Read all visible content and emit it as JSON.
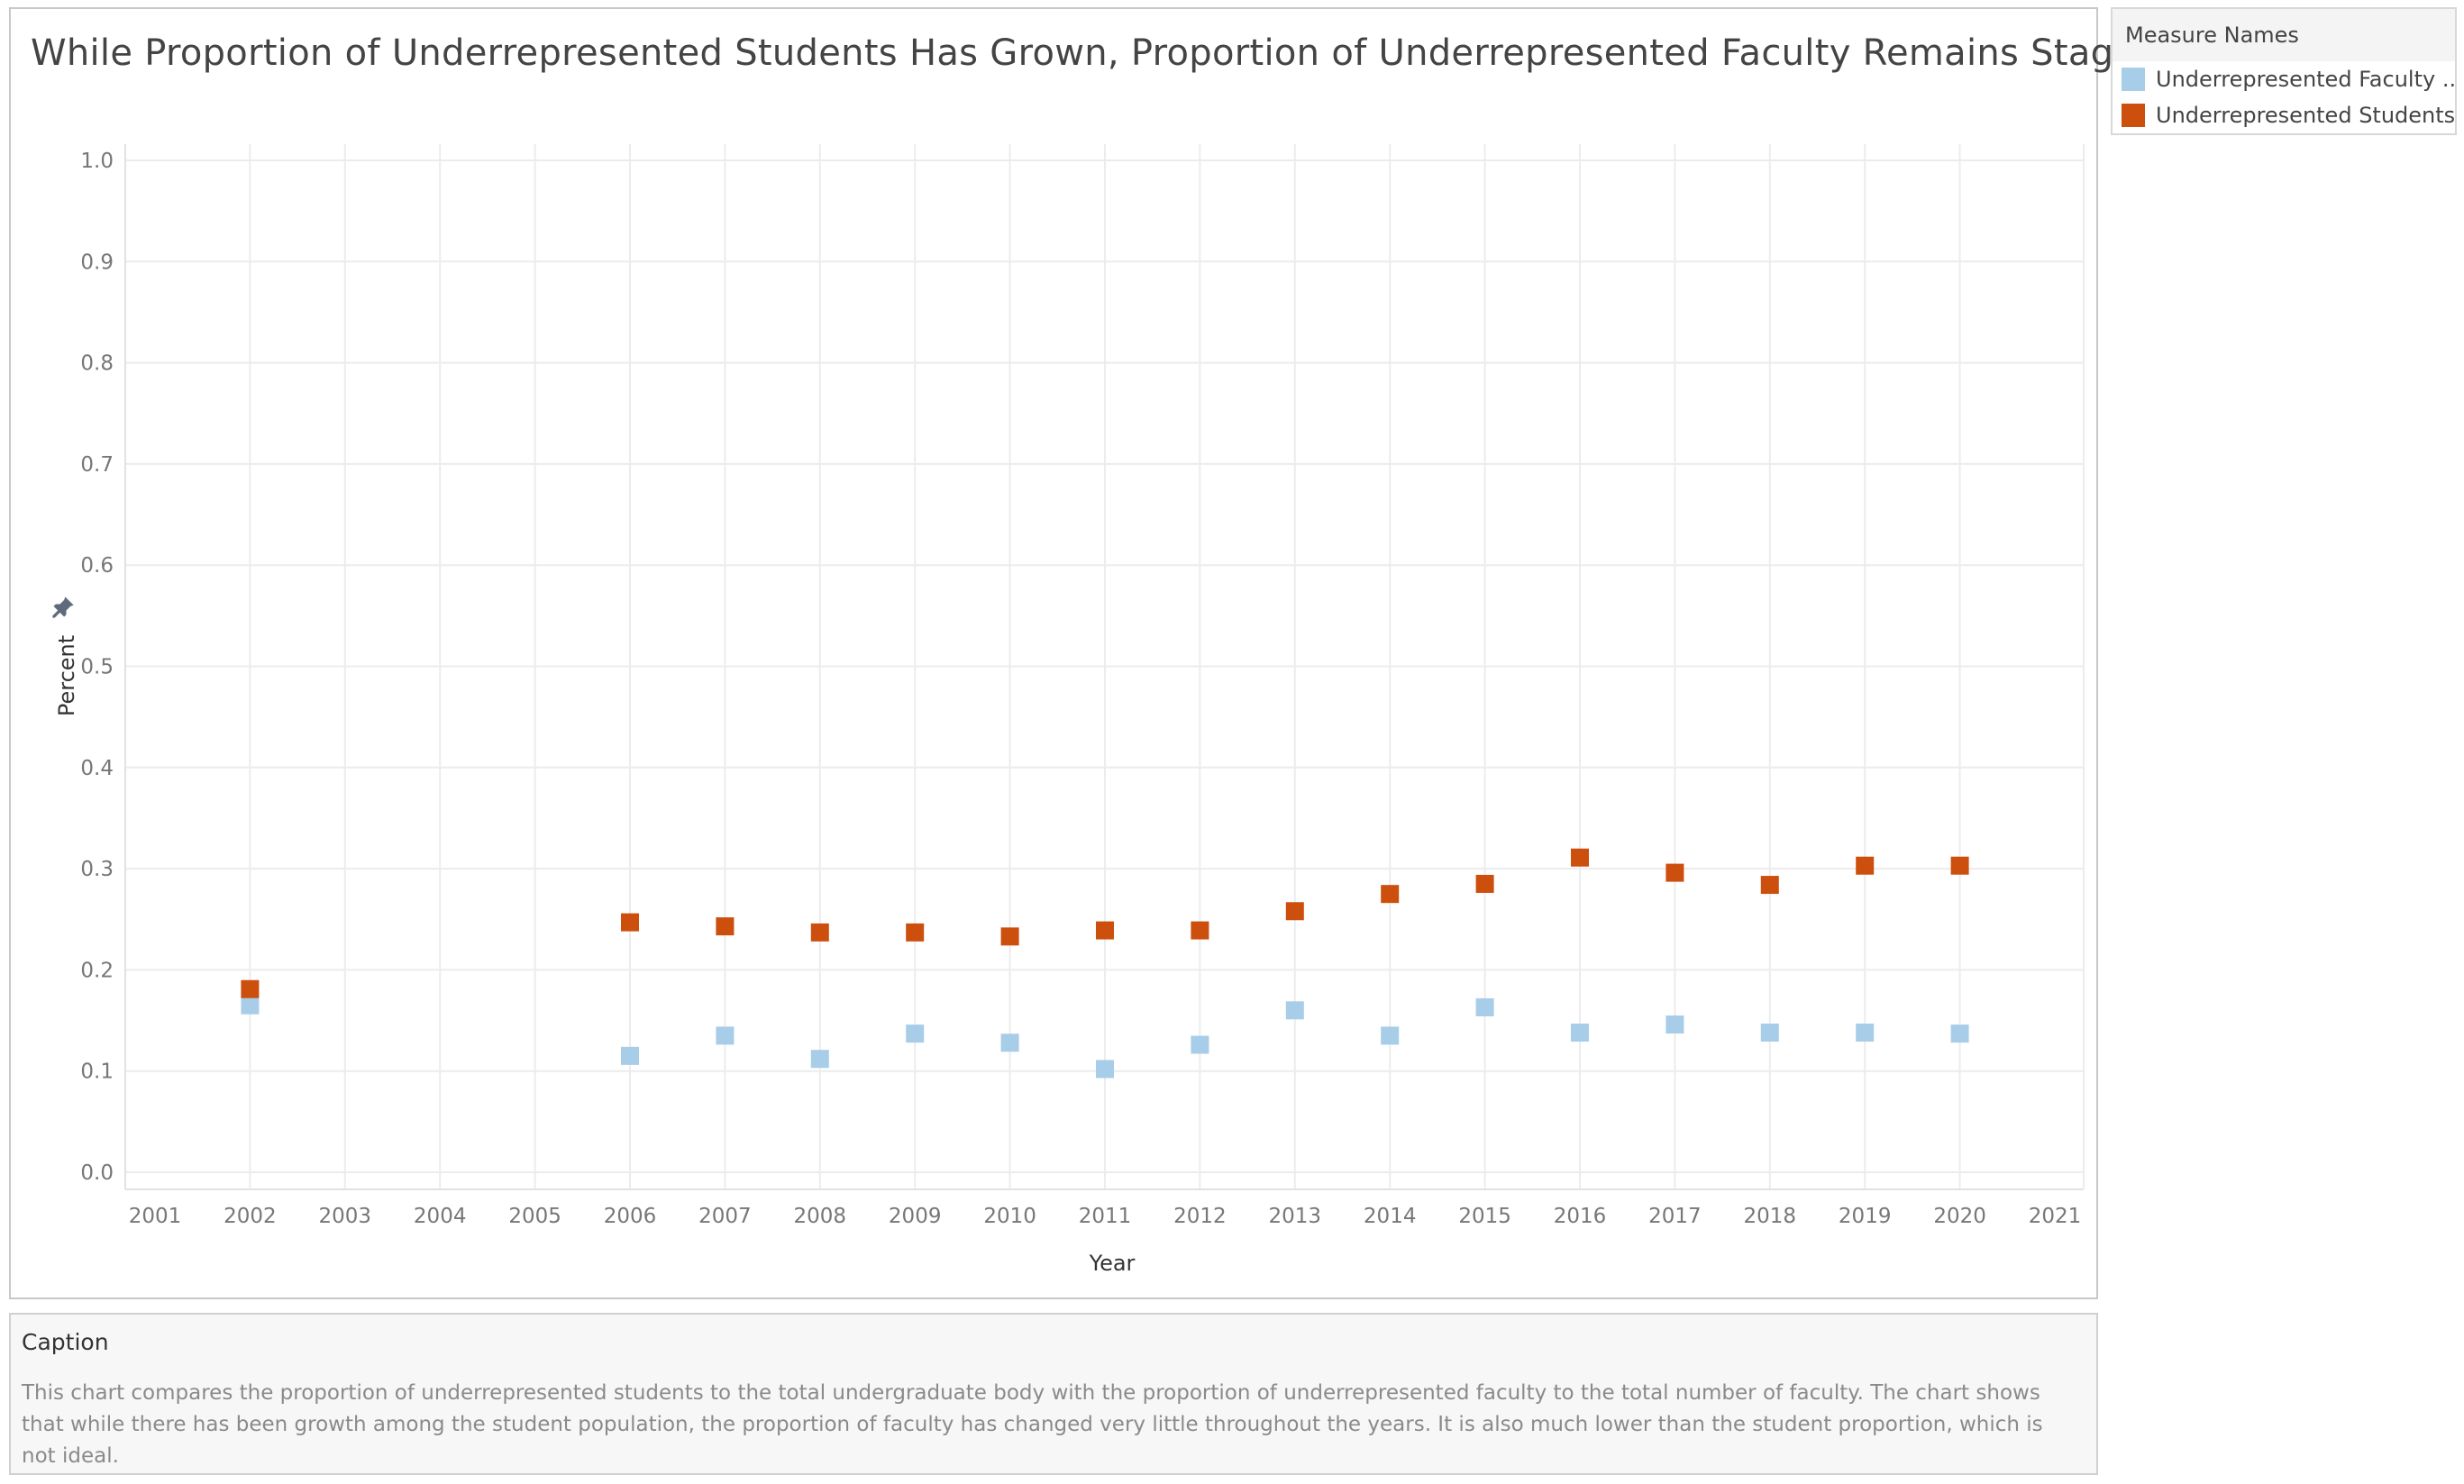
{
  "chart_data": {
    "type": "scatter",
    "title": "While Proportion of Underrepresented Students Has Grown, Proportion of Underrepresented Faculty Remains Stagnant.",
    "xlabel": "Year",
    "ylabel": "Percent",
    "xlim": [
      2001,
      2021
    ],
    "ylim": [
      0.0,
      1.0
    ],
    "x_ticks": [
      "2001",
      "2002",
      "2003",
      "2004",
      "2005",
      "2006",
      "2007",
      "2008",
      "2009",
      "2010",
      "2011",
      "2012",
      "2013",
      "2014",
      "2015",
      "2016",
      "2017",
      "2018",
      "2019",
      "2020",
      "2021"
    ],
    "y_ticks": [
      "0.0",
      "0.1",
      "0.2",
      "0.3",
      "0.4",
      "0.5",
      "0.6",
      "0.7",
      "0.8",
      "0.9",
      "1.0"
    ],
    "grid": true,
    "legend_position": "top-right",
    "series": [
      {
        "name": "Underrepresented Faculty ..",
        "color": "#a8cde9",
        "points": [
          {
            "x": 2002,
            "y": 0.165
          },
          {
            "x": 2006,
            "y": 0.115
          },
          {
            "x": 2007,
            "y": 0.135
          },
          {
            "x": 2008,
            "y": 0.112
          },
          {
            "x": 2009,
            "y": 0.137
          },
          {
            "x": 2010,
            "y": 0.128
          },
          {
            "x": 2011,
            "y": 0.102
          },
          {
            "x": 2012,
            "y": 0.126
          },
          {
            "x": 2013,
            "y": 0.16
          },
          {
            "x": 2014,
            "y": 0.135
          },
          {
            "x": 2015,
            "y": 0.163
          },
          {
            "x": 2016,
            "y": 0.138
          },
          {
            "x": 2017,
            "y": 0.146
          },
          {
            "x": 2018,
            "y": 0.138
          },
          {
            "x": 2019,
            "y": 0.138
          },
          {
            "x": 2020,
            "y": 0.137
          }
        ]
      },
      {
        "name": "Underrepresented Students",
        "color": "#cc4f0e",
        "points": [
          {
            "x": 2002,
            "y": 0.181
          },
          {
            "x": 2006,
            "y": 0.247
          },
          {
            "x": 2007,
            "y": 0.243
          },
          {
            "x": 2008,
            "y": 0.237
          },
          {
            "x": 2009,
            "y": 0.237
          },
          {
            "x": 2010,
            "y": 0.233
          },
          {
            "x": 2011,
            "y": 0.239
          },
          {
            "x": 2012,
            "y": 0.239
          },
          {
            "x": 2013,
            "y": 0.258
          },
          {
            "x": 2014,
            "y": 0.275
          },
          {
            "x": 2015,
            "y": 0.285
          },
          {
            "x": 2016,
            "y": 0.311
          },
          {
            "x": 2017,
            "y": 0.296
          },
          {
            "x": 2018,
            "y": 0.284
          },
          {
            "x": 2019,
            "y": 0.303
          },
          {
            "x": 2020,
            "y": 0.303
          }
        ]
      }
    ]
  },
  "legend": {
    "title": "Measure Names",
    "items": [
      {
        "label": "Underrepresented Faculty ..",
        "color": "#a8cde9"
      },
      {
        "label": "Underrepresented Students",
        "color": "#cc4f0e"
      }
    ]
  },
  "caption": {
    "title": "Caption",
    "text": "This chart compares the proportion of underrepresented students to the total undergraduate body with the proportion of underrepresented faculty to the total number of faculty. The chart shows that while there has been growth among the student population, the proportion of faculty has changed very little throughout the years. It is also much lower than the student proportion, which is not ideal."
  },
  "icons": {
    "pin": "pin-icon"
  }
}
